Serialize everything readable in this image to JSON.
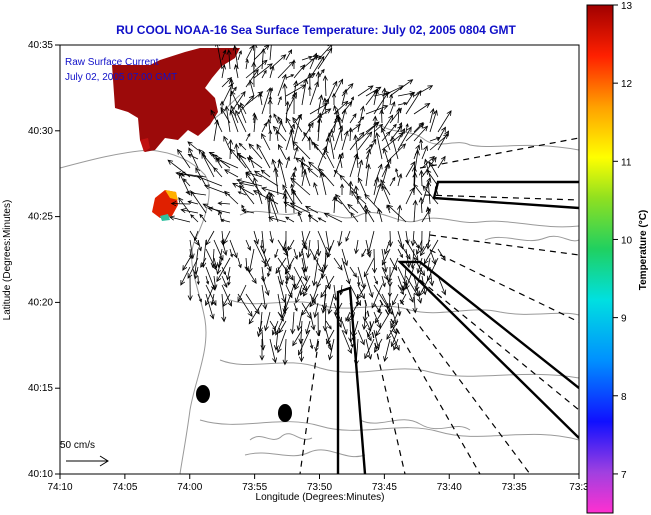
{
  "chart_data": {
    "type": "heatmap",
    "title": "RU COOL  NOAA-16  Sea Surface Temperature:  July 02, 2005 0804 GMT",
    "xlabel": "Longitude (Degrees:Minutes)",
    "ylabel": "Latitude (Degrees:Minutes)",
    "x_ticks": [
      "74:10",
      "74:05",
      "74:00",
      "73:55",
      "73:50",
      "73:45",
      "73:40",
      "73:35",
      "73:3"
    ],
    "y_ticks": [
      "40:35",
      "40:30",
      "40:25",
      "40:20",
      "40:15",
      "40:10"
    ],
    "xlim_minutes_west": [
      10,
      -30
    ],
    "ylim_minutes_north": [
      10,
      35
    ],
    "legend_lines": [
      "Raw Surface Current",
      "July 02, 2005 07:00 GMT"
    ],
    "scale_label": "50 cm/s",
    "colorbar": {
      "label": "Temperature (°C)",
      "range": [
        6.5,
        13
      ],
      "ticks": [
        "13",
        "12",
        "11",
        "10",
        "9",
        "8",
        "7"
      ]
    },
    "sst_patches": [
      {
        "name": "upper-river-patch",
        "temperature_c": 12.8
      },
      {
        "name": "coastal-warm-spot",
        "temperature_c": 11.8
      }
    ],
    "current_field": {
      "region": "lower bay / shelf",
      "description": "raw surface current vectors"
    }
  },
  "colors": {
    "title": "#1010c8",
    "legend_text": "#1010c8",
    "vectors": "#000000",
    "contours": "#9a9a9a"
  }
}
